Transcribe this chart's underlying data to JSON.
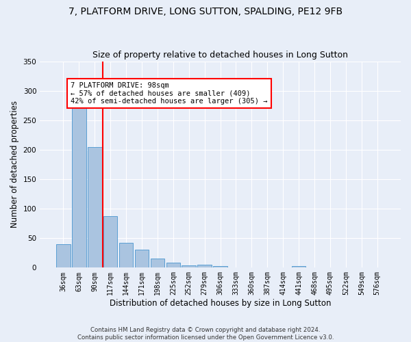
{
  "title1": "7, PLATFORM DRIVE, LONG SUTTON, SPALDING, PE12 9FB",
  "title2": "Size of property relative to detached houses in Long Sutton",
  "xlabel": "Distribution of detached houses by size in Long Sutton",
  "ylabel": "Number of detached properties",
  "footnote1": "Contains HM Land Registry data © Crown copyright and database right 2024.",
  "footnote2": "Contains public sector information licensed under the Open Government Licence v3.0.",
  "bar_labels": [
    "36sqm",
    "63sqm",
    "90sqm",
    "117sqm",
    "144sqm",
    "171sqm",
    "198sqm",
    "225sqm",
    "252sqm",
    "279sqm",
    "306sqm",
    "333sqm",
    "360sqm",
    "387sqm",
    "414sqm",
    "441sqm",
    "468sqm",
    "495sqm",
    "522sqm",
    "549sqm",
    "576sqm"
  ],
  "bar_values": [
    40,
    290,
    204,
    87,
    42,
    30,
    15,
    8,
    4,
    5,
    3,
    0,
    0,
    0,
    0,
    3,
    0,
    0,
    0,
    0,
    0
  ],
  "bar_color": "#aac4e0",
  "bar_edge_color": "#5a9fd4",
  "vline_color": "red",
  "annotation_title": "7 PLATFORM DRIVE: 98sqm",
  "annotation_line1": "← 57% of detached houses are smaller (409)",
  "annotation_line2": "42% of semi-detached houses are larger (305) →",
  "annotation_box_color": "white",
  "annotation_box_edge_color": "red",
  "ylim": [
    0,
    350
  ],
  "yticks": [
    0,
    50,
    100,
    150,
    200,
    250,
    300,
    350
  ],
  "bg_color": "#e8eef8",
  "grid_color": "white",
  "title_fontsize": 10,
  "subtitle_fontsize": 9,
  "axis_label_fontsize": 8.5,
  "tick_fontsize": 7
}
